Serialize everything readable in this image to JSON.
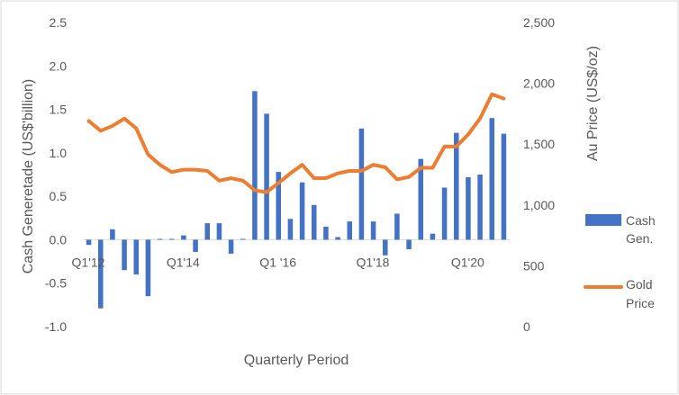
{
  "chart_data": {
    "type": "bar",
    "xlabel": "Quarterly Period",
    "ylabel": "Cash Generetade  (US$'billion)",
    "y2label": "Au Price (US$/oz)",
    "ylim": [
      -1.0,
      2.5
    ],
    "y2lim": [
      0,
      2500
    ],
    "yticks": [
      "-1.0",
      "-0.5",
      "0.0",
      "0.5",
      "1.0",
      "1.5",
      "2.0",
      "2.5"
    ],
    "y2ticks": [
      "0",
      "500",
      "1,000",
      "1,500",
      "2,000",
      "2,500"
    ],
    "category_labels": [
      {
        "index": 0,
        "text": "Q1'12"
      },
      {
        "index": 8,
        "text": "Q1'14"
      },
      {
        "index": 16,
        "text": "Q1 '16"
      },
      {
        "index": 24,
        "text": "Q1'18"
      },
      {
        "index": 32,
        "text": "Q1'20"
      }
    ],
    "categories_count": 36,
    "grid": false,
    "legend_position": "right",
    "series": [
      {
        "name": "Cash Gen.",
        "label_lines": [
          "Cash",
          "Gen."
        ],
        "type": "bar",
        "axis": "left",
        "color": "#4472C4",
        "values": [
          -0.06,
          -0.79,
          0.12,
          -0.35,
          -0.4,
          -0.65,
          0.01,
          0.01,
          0.05,
          -0.14,
          0.19,
          0.19,
          -0.16,
          0.01,
          1.71,
          1.45,
          0.78,
          0.24,
          0.66,
          0.4,
          0.15,
          0.03,
          0.21,
          1.28,
          0.21,
          -0.18,
          0.3,
          -0.11,
          0.93,
          0.07,
          0.6,
          1.23,
          0.72,
          0.75,
          1.4,
          1.22
        ]
      },
      {
        "name": "Gold Price",
        "label_lines": [
          "Gold",
          "Price"
        ],
        "type": "line",
        "axis": "right",
        "color": "#ED7D31",
        "values": [
          1690,
          1610,
          1650,
          1710,
          1630,
          1415,
          1330,
          1270,
          1290,
          1290,
          1280,
          1200,
          1220,
          1200,
          1120,
          1105,
          1180,
          1260,
          1330,
          1220,
          1220,
          1260,
          1280,
          1280,
          1330,
          1310,
          1210,
          1230,
          1305,
          1305,
          1480,
          1480,
          1580,
          1710,
          1910,
          1875
        ]
      }
    ]
  }
}
